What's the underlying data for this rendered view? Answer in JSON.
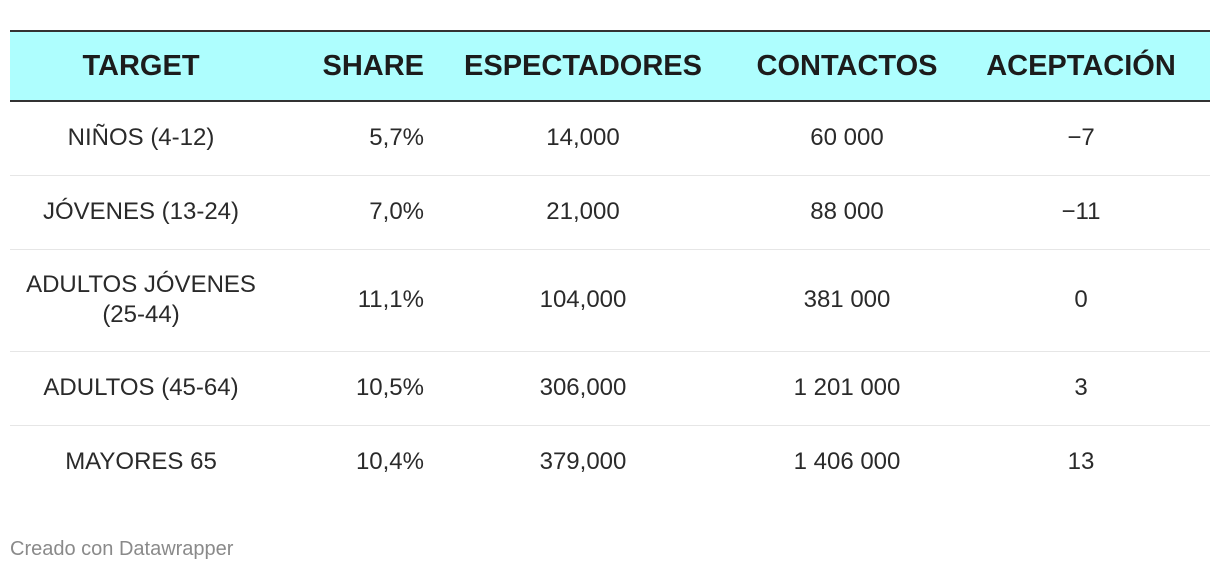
{
  "chart_data": {
    "type": "table",
    "columns": [
      "TARGET",
      "SHARE",
      "ESPECTADORES",
      "CONTACTOS",
      "ACEPTACIÓN"
    ],
    "rows": [
      {
        "target": "NIÑOS (4-12)",
        "share": "5,7%",
        "espectadores": "14,000",
        "contactos": "60 000",
        "aceptacion": "−7"
      },
      {
        "target": "JÓVENES (13-24)",
        "share": "7,0%",
        "espectadores": "21,000",
        "contactos": "88 000",
        "aceptacion": "−11"
      },
      {
        "target": "ADULTOS JÓVENES (25-44)",
        "share": "11,1%",
        "espectadores": "104,000",
        "contactos": "381 000",
        "aceptacion": "0"
      },
      {
        "target": "ADULTOS (45-64)",
        "share": "10,5%",
        "espectadores": "306,000",
        "contactos": "1 201 000",
        "aceptacion": "3"
      },
      {
        "target": "MAYORES 65",
        "share": "10,4%",
        "espectadores": "379,000",
        "contactos": "1 406 000",
        "aceptacion": "13"
      }
    ],
    "header_color": "#aefefe"
  },
  "footer": {
    "credit": "Creado con Datawrapper"
  }
}
